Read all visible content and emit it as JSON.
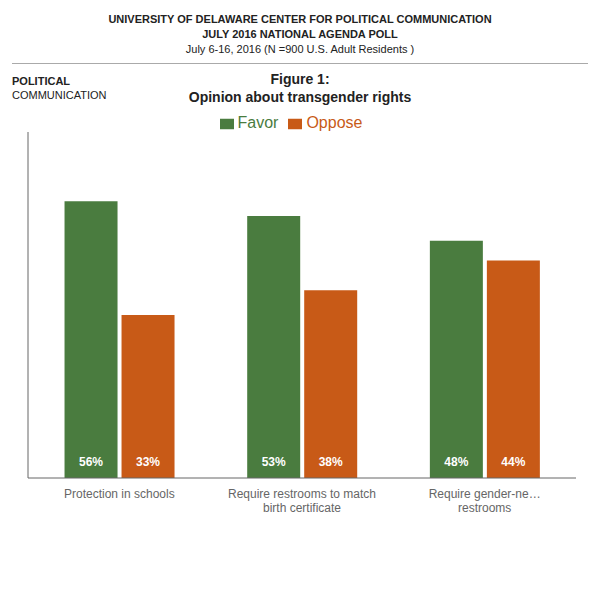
{
  "chart_data": {
    "type": "bar",
    "subtitle": [
      "UNIVERSITY OF DELAWARE CENTER FOR POLITICAL COMMUNICATION",
      "JULY 2016 NATIONAL AGENDA POLL",
      "July 6-16, 2016 (N =900 U.S. Adult Residents )"
    ],
    "annotations": [
      "POLITICAL",
      "COMMUNICATION"
    ],
    "title": [
      "Figure 1:",
      "Opinion about transgender rights"
    ],
    "categories": [
      "Protection in schools",
      "Require restrooms to match\nbirth certificate",
      "Require gender-ne…\nrestrooms"
    ],
    "series": [
      {
        "name": "Favor",
        "color": "#4a7c3f",
        "values": [
          56,
          53,
          48
        ],
        "value_labels": [
          "56%",
          "53%",
          "48%"
        ]
      },
      {
        "name": "Oppose",
        "color": "#c85a17",
        "values": [
          33,
          38,
          44
        ],
        "value_labels": [
          "33%",
          "38%",
          "44%"
        ]
      }
    ],
    "ylim": [
      0,
      70
    ],
    "grid": false,
    "legend": "top",
    "data_labels": true,
    "tick_labels": "x"
  }
}
